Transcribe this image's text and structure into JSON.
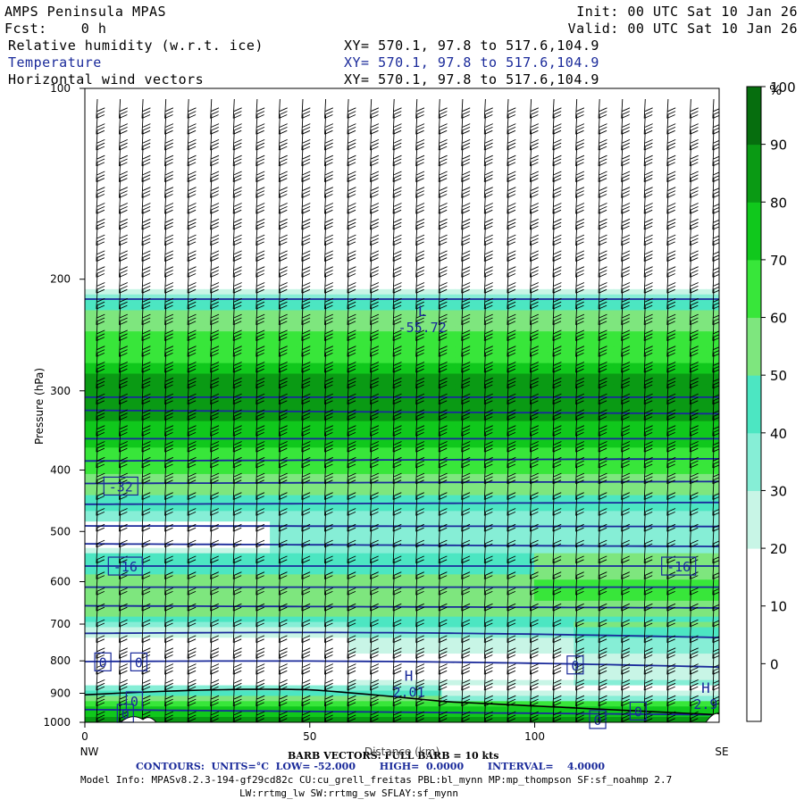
{
  "header": {
    "model": "AMPS Peninsula MPAS",
    "forecast": "Fcst:    0 h",
    "init": "Init: 00 UTC Sat 10 Jan 26",
    "valid": "Valid: 00 UTC Sat 10 Jan 26"
  },
  "fields": [
    {
      "label": "Relative humidity (w.r.t. ice)",
      "xy": "XY= 570.1, 97.8 to 517.6,104.9",
      "color": "#000000"
    },
    {
      "label": "Temperature",
      "xy": "XY= 570.1, 97.8 to 517.6,104.9",
      "color": "#1a2a9a"
    },
    {
      "label": "Horizontal wind vectors",
      "xy": "XY= 570.1, 97.8 to 517.6,104.9",
      "color": "#000000"
    }
  ],
  "footer": {
    "barb": "BARB VECTORS:  FULL BARB = 10 kts",
    "xlabel": "Distance (km)",
    "contours": "CONTOURS:  UNITS=°C  LOW= -52.000       HIGH=  0.0000       INTERVAL=    4.0000",
    "model_info": "Model Info: MPASv8.2.3-194-gf29cd82c CU:cu_grell_freitas PBL:bl_mynn MP:mp_thompson SF:sf_noahmp 2.7",
    "model_info2": "LW:rrtmg_lw SW:rrtmg_sw SFLAY:sf_mynn"
  },
  "chart_data": {
    "type": "heatmap",
    "description_free": true,
    "ylabel": "Pressure (hPa)",
    "yaxis": {
      "ticks": [
        100,
        200,
        300,
        400,
        500,
        600,
        700,
        800,
        900,
        1000
      ],
      "range": [
        100,
        1000
      ],
      "scale": "log"
    },
    "xaxis": {
      "ticks": [
        0,
        50,
        100
      ],
      "range": [
        0,
        141
      ],
      "left_label": "NW",
      "right_label": "SE"
    },
    "colorbar": {
      "unit": "%",
      "ticks": [
        0,
        10,
        20,
        30,
        40,
        50,
        60,
        70,
        80,
        90,
        100
      ],
      "levels": [
        0,
        10,
        20,
        30,
        40,
        50,
        60,
        70,
        80,
        90,
        100,
        110
      ],
      "colors": [
        "#ffffff",
        "#ffffff",
        "#ffffff",
        "#c8f5e6",
        "#86eed6",
        "#4ce6c2",
        "#7ee67e",
        "#38e63a",
        "#10c81c",
        "#0a9a14",
        "#066e0e",
        "#3c5c0a"
      ]
    },
    "rh_profile": [
      {
        "p": 100,
        "rh": 15
      },
      {
        "p": 205,
        "rh": 15
      },
      {
        "p": 215,
        "rh": 55
      },
      {
        "p": 245,
        "rh": 72
      },
      {
        "p": 270,
        "rh": 78
      },
      {
        "p": 285,
        "rh": 93
      },
      {
        "p": 310,
        "rh": 96
      },
      {
        "p": 330,
        "rh": 92
      },
      {
        "p": 360,
        "rh": 82
      },
      {
        "p": 400,
        "rh": 72
      },
      {
        "p": 440,
        "rh": 58
      },
      {
        "p": 480,
        "rh": 46
      },
      {
        "p": 520,
        "rh": 42
      },
      {
        "p": 560,
        "rh": 58
      },
      {
        "p": 600,
        "rh": 62
      },
      {
        "p": 650,
        "rh": 70
      },
      {
        "p": 700,
        "rh": 52
      },
      {
        "p": 740,
        "rh": 38
      },
      {
        "p": 780,
        "rh": 28
      },
      {
        "p": 820,
        "rh": 24
      },
      {
        "p": 860,
        "rh": 28
      },
      {
        "p": 900,
        "rh": 55
      },
      {
        "p": 920,
        "rh": 72
      },
      {
        "p": 950,
        "rh": 84
      },
      {
        "p": 980,
        "rh": 92
      },
      {
        "p": 1000,
        "rh": 95
      }
    ],
    "isotherms": [
      {
        "t": -52,
        "p0": 215,
        "p1": 215
      },
      {
        "t": -48,
        "p0": 307,
        "p1": 307
      },
      {
        "t": -44,
        "p0": 322,
        "p1": 326
      },
      {
        "t": -40,
        "p0": 357,
        "p1": 357
      },
      {
        "t": -36,
        "p0": 387,
        "p1": 384
      },
      {
        "t": -32,
        "p0": 420,
        "p1": 417
      },
      {
        "t": -28,
        "p0": 453,
        "p1": 450
      },
      {
        "t": -24,
        "p0": 490,
        "p1": 491
      },
      {
        "t": -20,
        "p0": 523,
        "p1": 528
      },
      {
        "t": -16,
        "p0": 567,
        "p1": 567
      },
      {
        "t": -12,
        "p0": 612,
        "p1": 612
      },
      {
        "t": -8,
        "p0": 655,
        "p1": 660
      },
      {
        "t": -4,
        "p0": 724,
        "p1": 735
      },
      {
        "t": 0,
        "p0": 802,
        "p1": 818
      }
    ],
    "isotherm_labels": [
      {
        "text": "-32",
        "x": 8,
        "p": 424
      },
      {
        "text": "-16",
        "x": 9,
        "p": 567
      },
      {
        "text": "-16",
        "x": 132,
        "p": 567
      },
      {
        "text": "0",
        "x": 4,
        "p": 803
      },
      {
        "text": "0",
        "x": 12,
        "p": 803
      },
      {
        "text": "0",
        "x": 109,
        "p": 812
      },
      {
        "text": "0",
        "x": 11,
        "p": 925
      },
      {
        "text": "0",
        "x": 9,
        "p": 968
      },
      {
        "text": "0",
        "x": 114,
        "p": 990
      },
      {
        "text": "0",
        "x": 123,
        "p": 960
      }
    ],
    "extrema": [
      {
        "kind": "L",
        "value": "-55.72",
        "x": 75,
        "p": 230
      },
      {
        "kind": "H",
        "value": "2.01",
        "x": 72,
        "p": 865
      },
      {
        "kind": "H",
        "value": "2.9",
        "x": 138,
        "p": 905
      }
    ]
  }
}
